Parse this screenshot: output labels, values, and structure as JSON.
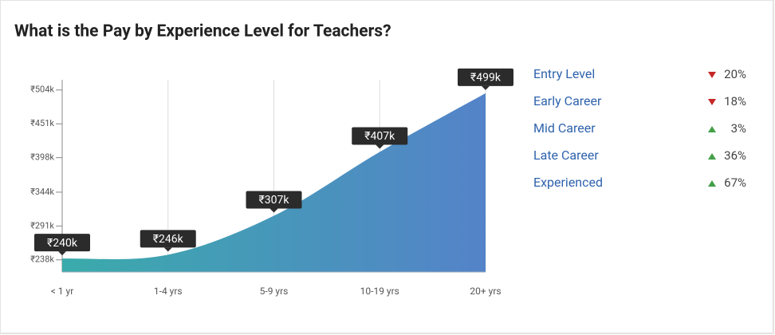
{
  "title": "What is the Pay by Experience Level for Teachers?",
  "chart_data": {
    "type": "area",
    "categories": [
      "< 1 yr",
      "1-4 yrs",
      "5-9 yrs",
      "10-19 yrs",
      "20+ yrs"
    ],
    "values": [
      240,
      246,
      307,
      407,
      499
    ],
    "value_labels": [
      "₹240k",
      "₹246k",
      "₹307k",
      "₹407k",
      "₹499k"
    ],
    "colors": [
      "#3aabab",
      "#5483c9"
    ],
    "ylim": [
      219,
      520
    ],
    "yticks": [
      {
        "value": 238,
        "label": "₹238k"
      },
      {
        "value": 291,
        "label": "₹291k"
      },
      {
        "value": 344,
        "label": "₹344k"
      },
      {
        "value": 398,
        "label": "₹398k"
      },
      {
        "value": 451,
        "label": "₹451k"
      },
      {
        "value": 504,
        "label": "₹504k"
      }
    ],
    "grid": true
  },
  "pay_changes": [
    {
      "label": "Entry Level",
      "change": "20%",
      "direction": "down"
    },
    {
      "label": "Early Career",
      "change": "18%",
      "direction": "down"
    },
    {
      "label": "Mid Career",
      "change": "3%",
      "direction": "up"
    },
    {
      "label": "Late Career",
      "change": "36%",
      "direction": "up"
    },
    {
      "label": "Experienced",
      "change": "67%",
      "direction": "up"
    }
  ]
}
